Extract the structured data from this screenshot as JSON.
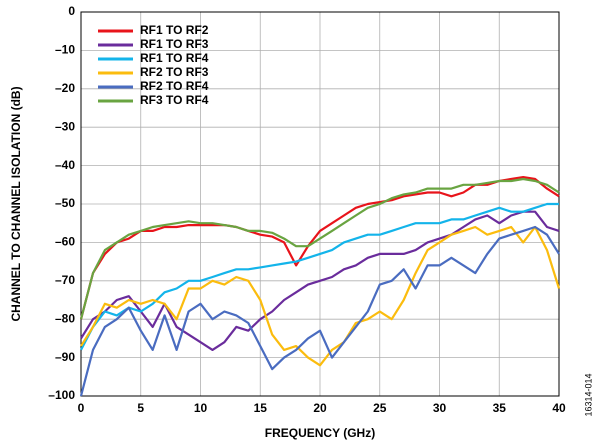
{
  "chart_data": {
    "type": "line",
    "xlabel": "FREQUENCY (GHz)",
    "ylabel": "CHANNEL TO CHANNEL ISOLATION (dB)",
    "note": "16314-014",
    "x": [
      0,
      1,
      2,
      3,
      4,
      5,
      6,
      7,
      8,
      9,
      10,
      11,
      12,
      13,
      14,
      15,
      16,
      17,
      18,
      19,
      20,
      21,
      22,
      23,
      24,
      25,
      26,
      27,
      28,
      29,
      30,
      31,
      32,
      33,
      34,
      35,
      36,
      37,
      38,
      39,
      40
    ],
    "series": [
      {
        "name": "RF1 TO RF2",
        "color": "#e8141b",
        "values": [
          -80,
          -68,
          -63,
          -60,
          -59,
          -57,
          -57,
          -56,
          -56,
          -55.5,
          -55.5,
          -55.5,
          -55.5,
          -56,
          -57,
          -58,
          -58.5,
          -60,
          -66,
          -61,
          -57,
          -55,
          -53,
          -51,
          -50,
          -49.5,
          -49,
          -48,
          -47.5,
          -47,
          -47,
          -48,
          -47,
          -45,
          -45,
          -44,
          -43.5,
          -43,
          -43.5,
          -46,
          -48
        ]
      },
      {
        "name": "RF1 TO RF3",
        "color": "#6a2c9c",
        "values": [
          -85,
          -80,
          -78,
          -75,
          -74,
          -78,
          -82,
          -76,
          -82,
          -84,
          -86,
          -88,
          -86,
          -82,
          -83,
          -80,
          -78,
          -75,
          -73,
          -71,
          -70,
          -69,
          -67,
          -66,
          -64,
          -63,
          -63,
          -63,
          -62,
          -60,
          -59,
          -58,
          -56,
          -54,
          -53,
          -55,
          -53,
          -52,
          -52,
          -56,
          -57
        ]
      },
      {
        "name": "RF1 TO RF4",
        "color": "#13b4ea",
        "values": [
          -88,
          -82,
          -78,
          -79,
          -77,
          -78,
          -76,
          -73,
          -72,
          -70,
          -70,
          -69,
          -68,
          -67,
          -67,
          -66.5,
          -66,
          -65.5,
          -65,
          -64,
          -63,
          -62,
          -60,
          -59,
          -58,
          -58,
          -57,
          -56,
          -55,
          -55,
          -55,
          -54,
          -54,
          -53,
          -52,
          -51,
          -52,
          -52,
          -51,
          -50,
          -50
        ]
      },
      {
        "name": "RF2 TO RF3",
        "color": "#fbbc0e",
        "values": [
          -87,
          -82,
          -76,
          -77,
          -75,
          -76,
          -75,
          -76,
          -80,
          -72,
          -72,
          -70,
          -71,
          -69,
          -70,
          -75,
          -84,
          -88,
          -87,
          -90,
          -92,
          -88,
          -86,
          -81,
          -80,
          -78,
          -80,
          -75,
          -68,
          -62,
          -60,
          -58,
          -57,
          -56,
          -58,
          -57,
          -56,
          -60,
          -56,
          -62,
          -72
        ]
      },
      {
        "name": "RF2 TO RF4",
        "color": "#4a6cc0",
        "values": [
          -100,
          -88,
          -82,
          -80,
          -77,
          -83,
          -88,
          -79,
          -88,
          -78,
          -76,
          -80,
          -78,
          -79,
          -81,
          -87,
          -93,
          -90,
          -88,
          -85,
          -83,
          -90,
          -86,
          -82,
          -78,
          -71,
          -70,
          -67,
          -72,
          -66,
          -66,
          -64,
          -66,
          -68,
          -63,
          -59,
          -58,
          -57,
          -56,
          -58,
          -63
        ]
      },
      {
        "name": "RF3 TO RF4",
        "color": "#69a441",
        "values": [
          -80,
          -68,
          -62,
          -60,
          -58,
          -57,
          -56,
          -55.5,
          -55,
          -54.5,
          -55,
          -55,
          -55.5,
          -56,
          -57,
          -57,
          -57.5,
          -59,
          -61,
          -61,
          -59,
          -57,
          -55,
          -53,
          -51,
          -50,
          -48.5,
          -47.5,
          -47,
          -46,
          -46,
          -46,
          -45,
          -45,
          -44.5,
          -44,
          -44,
          -43.5,
          -44,
          -45,
          -47
        ]
      }
    ],
    "xlim": [
      0,
      40
    ],
    "xticks": [
      0,
      5,
      10,
      15,
      20,
      25,
      30,
      35,
      40
    ],
    "ylim": [
      -100,
      0
    ],
    "yticks": [
      0,
      {
        "value": -10,
        "label": "–10"
      },
      {
        "value": -20,
        "label": "–20"
      },
      {
        "value": -30,
        "label": "–30"
      },
      {
        "value": -40,
        "label": "–40"
      },
      {
        "value": -50,
        "label": "–50"
      },
      {
        "value": -60,
        "label": "–60"
      },
      {
        "value": -70,
        "label": "–70"
      },
      {
        "value": -80,
        "label": "–80"
      },
      {
        "value": -90,
        "label": "–90"
      },
      {
        "value": -100,
        "label": "–100"
      }
    ],
    "grid": true,
    "legend": "upper-left"
  }
}
